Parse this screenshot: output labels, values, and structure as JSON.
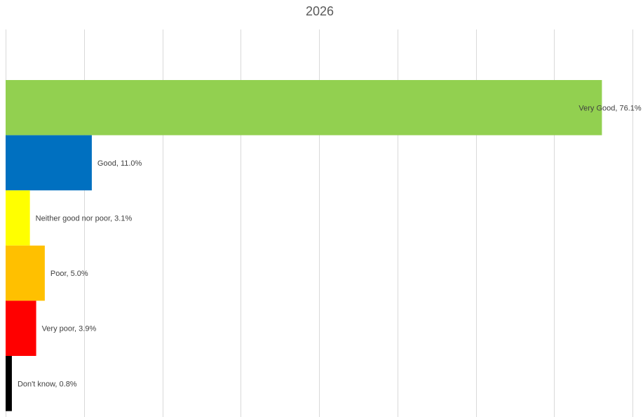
{
  "chart_data": {
    "type": "bar",
    "orientation": "horizontal",
    "title": "2026",
    "xlabel": "",
    "ylabel": "",
    "xlim": [
      0,
      80
    ],
    "grid": true,
    "legend": "none",
    "categories": [
      "Very Good",
      "Good",
      "Neither good nor poor",
      "Poor",
      "Very poor",
      "Don't know"
    ],
    "values": [
      76.1,
      11.0,
      3.1,
      5.0,
      3.9,
      0.8
    ],
    "data_labels": [
      "Very Good, 76.1%",
      "Good, 11.0%",
      "Neither good nor poor, 3.1%",
      "Poor, 5.0%",
      "Very poor, 3.9%",
      "Don't know, 0.8%"
    ],
    "colors": [
      "#92d050",
      "#0070c0",
      "#ffff00",
      "#ffc000",
      "#ff0000",
      "#000000"
    ]
  }
}
